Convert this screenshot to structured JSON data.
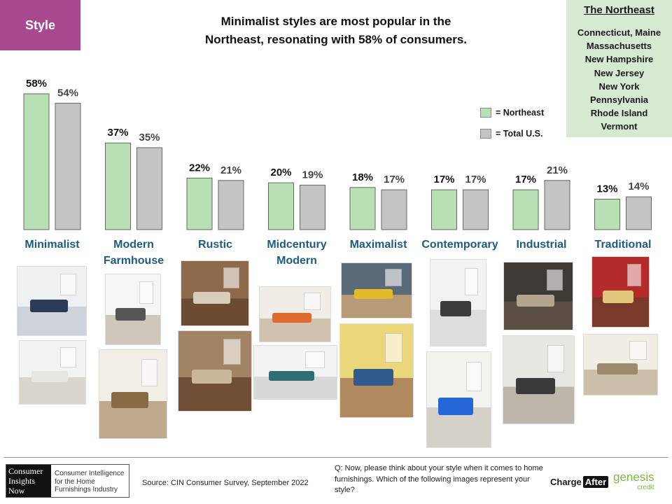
{
  "header": {
    "style_tag": "Style",
    "title_line1": "Minimalist styles are most popular in the",
    "title_line2": "Northeast, resonating with 58% of consumers."
  },
  "region_box": {
    "title": "The Northeast",
    "states": [
      "Connecticut, Maine",
      "Massachusetts",
      "New Hampshire",
      "New Jersey",
      "New York",
      "Pennsylvania",
      "Rhode Island",
      "Vermont"
    ]
  },
  "legend": [
    {
      "label": "= Northeast",
      "color": "#b9dfb5"
    },
    {
      "label": "= Total U.S.",
      "color": "#c4c4c4"
    }
  ],
  "colors": {
    "northeast": "#b9dfb5",
    "total": "#c4c4c4",
    "category_label": "#1f5a80",
    "bar_stroke": "#666666"
  },
  "chart_data": {
    "type": "bar",
    "categories": [
      [
        "Minimalist"
      ],
      [
        "Modern",
        "Farmhouse"
      ],
      [
        "Rustic"
      ],
      [
        "Midcentury",
        "Modern"
      ],
      [
        "Maximalist"
      ],
      [
        "Contemporary"
      ],
      [
        "Industrial"
      ],
      [
        "Traditional"
      ]
    ],
    "series": [
      {
        "name": "Northeast",
        "values": [
          58,
          37,
          22,
          20,
          18,
          17,
          17,
          13
        ]
      },
      {
        "name": "Total U.S.",
        "values": [
          54,
          35,
          21,
          19,
          17,
          17,
          21,
          14
        ]
      }
    ],
    "value_suffix": "%",
    "ylim": [
      0,
      58
    ],
    "grid": false,
    "legend_position": "right"
  },
  "photo_icons": [
    "living-room-photo",
    "living-room-photo",
    "farmhouse-living-photo",
    "dining-room-photo",
    "rustic-cabin-photo",
    "rustic-living-photo",
    "midcentury-living-photo",
    "midcentury-lounge-photo",
    "maximalist-shelves-photo",
    "maximalist-living-photo",
    "contemporary-hall-photo",
    "contemporary-living-photo",
    "industrial-loft-photo",
    "industrial-library-photo",
    "traditional-red-room-photo",
    "traditional-living-photo"
  ],
  "footer": {
    "logo_left": [
      "Consumer",
      "Insights",
      "Now"
    ],
    "logo_right": "Consumer Intelligence for the Home Furnishings Industry",
    "source": "Source: CIN Consumer Survey, September  2022",
    "question": "Q: Now,  please think about your style when  it comes to home furnishings. Which of the following images represent your style?",
    "chargeafter_a": "Charge",
    "chargeafter_b": "After",
    "genesis": "genesis",
    "genesis_sub": "credit"
  }
}
